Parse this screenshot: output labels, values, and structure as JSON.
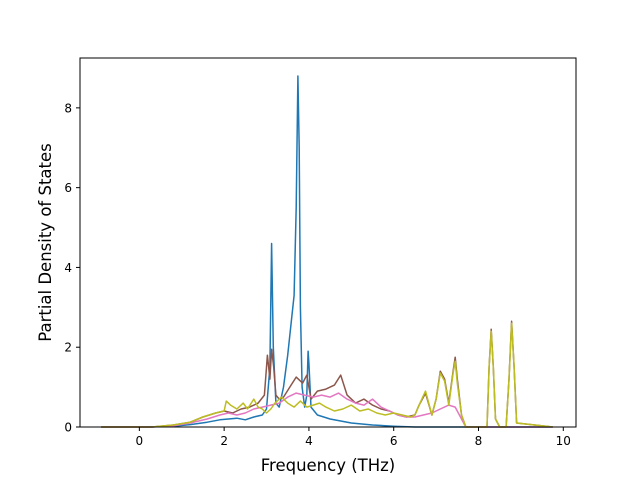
{
  "chart_data": {
    "type": "line",
    "xlabel": "Frequency (THz)",
    "ylabel": "Partial Density of States",
    "xlim": [
      -1.4,
      10.3
    ],
    "ylim": [
      0,
      9.25
    ],
    "xticks": [
      0,
      2,
      4,
      6,
      8,
      10
    ],
    "yticks": [
      0,
      2,
      4,
      6,
      8
    ],
    "grid": false,
    "series": [
      {
        "color": "#1f77b4",
        "x": [
          -0.9,
          0.2,
          0.8,
          1.2,
          1.6,
          1.9,
          2.1,
          2.3,
          2.5,
          2.7,
          2.9,
          3.0,
          3.08,
          3.12,
          3.16,
          3.22,
          3.3,
          3.4,
          3.5,
          3.58,
          3.65,
          3.7,
          3.74,
          3.77,
          3.8,
          3.84,
          3.9,
          3.95,
          3.98,
          4.0,
          4.05,
          4.2,
          4.5,
          5.0,
          5.5,
          6.0,
          6.5,
          9.75
        ],
        "y": [
          0,
          0,
          0.02,
          0.06,
          0.12,
          0.18,
          0.2,
          0.22,
          0.18,
          0.25,
          0.3,
          0.45,
          1.5,
          4.6,
          2.0,
          0.6,
          0.5,
          1.0,
          1.8,
          2.6,
          3.3,
          5.5,
          8.8,
          7.0,
          3.0,
          1.0,
          0.5,
          0.8,
          1.9,
          1.6,
          0.5,
          0.3,
          0.2,
          0.1,
          0.05,
          0.02,
          0,
          0
        ]
      },
      {
        "color": "#8c564b",
        "x": [
          -0.9,
          0.3,
          0.8,
          1.2,
          1.5,
          1.8,
          2.0,
          2.2,
          2.4,
          2.6,
          2.8,
          2.95,
          3.02,
          3.08,
          3.12,
          3.17,
          3.22,
          3.3,
          3.4,
          3.55,
          3.7,
          3.85,
          3.95,
          4.05,
          4.2,
          4.4,
          4.6,
          4.75,
          4.9,
          5.1,
          5.3,
          5.5,
          5.7,
          5.9,
          6.1,
          6.3,
          6.5,
          6.6,
          6.75,
          6.9,
          7.0,
          7.1,
          7.2,
          7.3,
          7.4,
          7.45,
          7.5,
          7.6,
          7.7,
          8.2,
          8.25,
          8.3,
          8.35,
          8.4,
          8.5,
          8.65,
          8.72,
          8.78,
          8.84,
          8.9,
          9.75
        ],
        "y": [
          0,
          0,
          0.05,
          0.12,
          0.25,
          0.35,
          0.4,
          0.35,
          0.45,
          0.5,
          0.6,
          0.8,
          1.8,
          1.2,
          1.95,
          1.5,
          0.8,
          0.7,
          0.75,
          1.0,
          1.25,
          1.1,
          1.3,
          0.7,
          0.9,
          0.95,
          1.05,
          1.3,
          0.8,
          0.6,
          0.7,
          0.55,
          0.45,
          0.4,
          0.3,
          0.25,
          0.3,
          0.55,
          0.85,
          0.3,
          0.7,
          1.4,
          1.2,
          0.6,
          1.4,
          1.75,
          1.2,
          0.3,
          0,
          0,
          1.5,
          2.45,
          1.5,
          0.2,
          0,
          0,
          1.2,
          2.65,
          1.5,
          0.1,
          0
        ]
      },
      {
        "color": "#e377c2",
        "x": [
          -0.9,
          0.3,
          0.8,
          1.2,
          1.6,
          1.9,
          2.1,
          2.3,
          2.5,
          2.7,
          2.9,
          3.1,
          3.3,
          3.5,
          3.7,
          3.9,
          4.1,
          4.3,
          4.5,
          4.7,
          4.9,
          5.1,
          5.3,
          5.5,
          5.7,
          5.9,
          6.1,
          6.3,
          6.5,
          6.7,
          6.9,
          7.1,
          7.3,
          7.45,
          7.6,
          7.7,
          9.75
        ],
        "y": [
          0,
          0,
          0.03,
          0.1,
          0.2,
          0.3,
          0.35,
          0.3,
          0.35,
          0.45,
          0.5,
          0.55,
          0.6,
          0.75,
          0.85,
          0.8,
          0.75,
          0.8,
          0.75,
          0.85,
          0.7,
          0.6,
          0.55,
          0.7,
          0.5,
          0.4,
          0.3,
          0.25,
          0.25,
          0.3,
          0.35,
          0.45,
          0.55,
          0.5,
          0.2,
          0,
          0
        ]
      },
      {
        "color": "#bcbd22",
        "x": [
          -0.9,
          0.3,
          0.8,
          1.2,
          1.5,
          1.8,
          2.0,
          2.05,
          2.15,
          2.3,
          2.45,
          2.55,
          2.7,
          2.8,
          2.9,
          3.0,
          3.1,
          3.2,
          3.35,
          3.5,
          3.65,
          3.8,
          3.95,
          4.1,
          4.25,
          4.4,
          4.6,
          4.8,
          5.0,
          5.2,
          5.4,
          5.6,
          5.8,
          6.0,
          6.2,
          6.4,
          6.5,
          6.6,
          6.75,
          6.9,
          7.0,
          7.1,
          7.2,
          7.3,
          7.4,
          7.45,
          7.5,
          7.6,
          7.7,
          8.2,
          8.25,
          8.3,
          8.35,
          8.4,
          8.5,
          8.65,
          8.72,
          8.78,
          8.84,
          8.9,
          9.75
        ],
        "y": [
          0,
          0,
          0.05,
          0.12,
          0.25,
          0.35,
          0.4,
          0.65,
          0.55,
          0.45,
          0.6,
          0.45,
          0.7,
          0.5,
          0.45,
          0.35,
          0.45,
          0.6,
          0.75,
          0.6,
          0.5,
          0.65,
          0.5,
          0.55,
          0.6,
          0.5,
          0.4,
          0.45,
          0.55,
          0.4,
          0.45,
          0.35,
          0.3,
          0.35,
          0.3,
          0.25,
          0.3,
          0.55,
          0.9,
          0.3,
          0.7,
          1.35,
          1.15,
          0.55,
          1.35,
          1.65,
          1.1,
          0.3,
          0,
          0,
          1.5,
          2.4,
          1.5,
          0.2,
          0,
          0,
          1.2,
          2.6,
          1.5,
          0.1,
          0
        ]
      }
    ]
  }
}
